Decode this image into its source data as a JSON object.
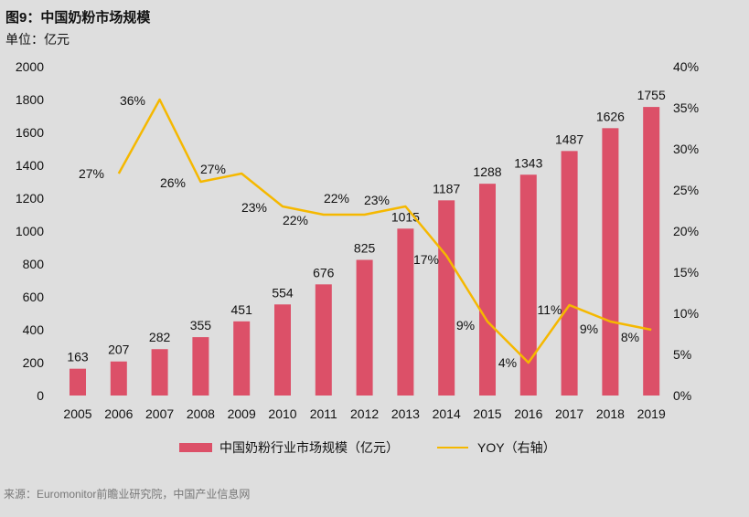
{
  "title": "图9：中国奶粉市场规模",
  "unit": "单位：亿元",
  "source": "来源：Euromonitor前瞻业研究院，中国产业信息网",
  "chart_data": {
    "type": "bar+line",
    "categories": [
      "2005",
      "2006",
      "2007",
      "2008",
      "2009",
      "2010",
      "2011",
      "2012",
      "2013",
      "2014",
      "2015",
      "2016",
      "2017",
      "2018",
      "2019"
    ],
    "series": [
      {
        "name": "中国奶粉行业市场规模（亿元）",
        "type": "bar",
        "axis": "left",
        "color": "#dc5068",
        "values": [
          163,
          207,
          282,
          355,
          451,
          554,
          676,
          825,
          1015,
          1187,
          1288,
          1343,
          1487,
          1626,
          1755
        ],
        "labels": [
          "163",
          "207",
          "282",
          "355",
          "451",
          "554",
          "676",
          "825",
          "1015",
          "1187",
          "1288",
          "1343",
          "1487",
          "1626",
          "1755"
        ]
      },
      {
        "name": "YOY（右轴）",
        "type": "line",
        "axis": "right",
        "color": "#f5b800",
        "x": [
          "2006",
          "2007",
          "2008",
          "2009",
          "2010",
          "2011",
          "2012",
          "2013",
          "2014",
          "2015",
          "2016",
          "2017",
          "2018",
          "2019"
        ],
        "values": [
          27,
          36,
          26,
          27,
          23,
          22,
          22,
          23,
          17,
          9,
          4,
          11,
          9,
          8
        ],
        "labels": [
          "27%",
          "36%",
          "26%",
          "27%",
          "23%",
          "22%",
          "22%",
          "23%",
          "17%",
          "9%",
          "4%",
          "11%",
          "9%",
          "8%"
        ]
      }
    ],
    "left_axis": {
      "ylim": [
        0,
        2000
      ],
      "ticks": [
        "0",
        "200",
        "400",
        "600",
        "800",
        "1000",
        "1200",
        "1400",
        "1600",
        "1800",
        "2000"
      ]
    },
    "right_axis": {
      "ylim": [
        0,
        40
      ],
      "ticks": [
        "0%",
        "5%",
        "10%",
        "15%",
        "20%",
        "25%",
        "30%",
        "35%",
        "40%"
      ]
    },
    "grid": false,
    "legend": "bottom"
  }
}
